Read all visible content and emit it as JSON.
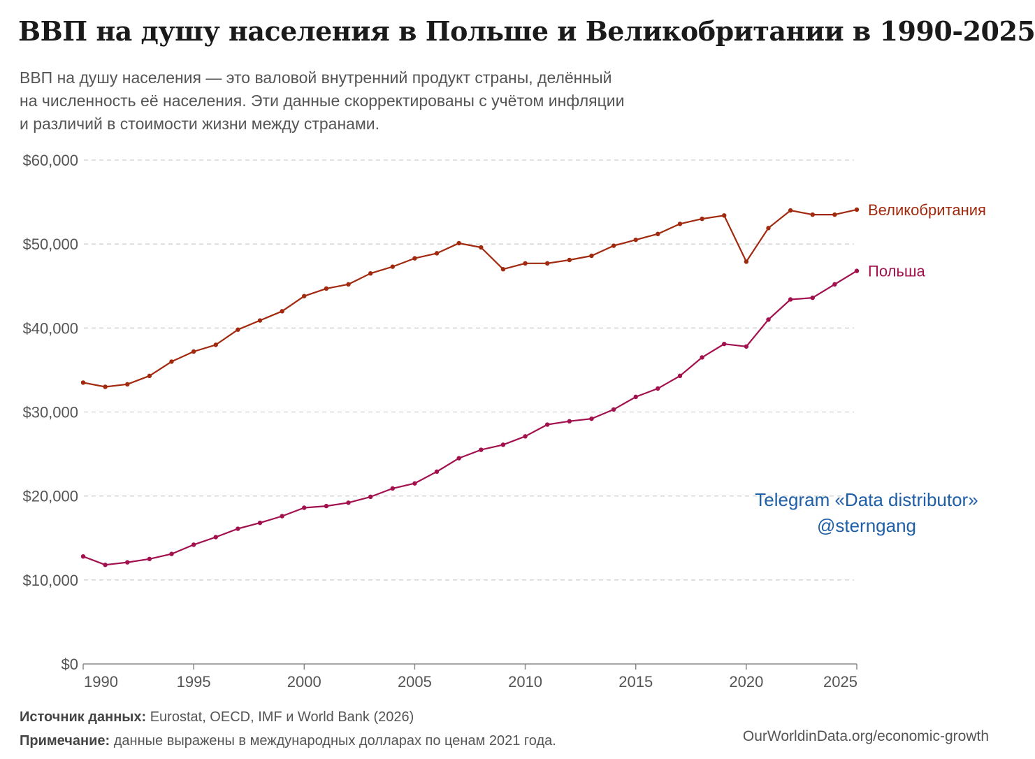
{
  "title": "ВВП на душу населения в Польше и Великобритании в 1990-2025",
  "subtitle": [
    "ВВП на душу населения — это валовой внутренний продукт страны, делённый",
    "на численность её населения. Эти данные скорректированы с учётом инфляции",
    "и различий в стоимости жизни между странами."
  ],
  "watermark": {
    "line1": "Telegram «Data distributor»",
    "line2": "@sterngang"
  },
  "footer": {
    "source_label": "Источник данных:",
    "source_text": " Eurostat, OECD, IMF и World Bank (2026)",
    "note_label": "Примечание:",
    "note_text": " данные выражены в международных долларах по ценам 2021 года.",
    "url": "OurWorldinData.org/economic-growth"
  },
  "chart_data": {
    "type": "line",
    "xlabel": "",
    "ylabel": "",
    "xlim": [
      1990,
      2025
    ],
    "ylim": [
      0,
      60000
    ],
    "yticks": [
      0,
      10000,
      20000,
      30000,
      40000,
      50000,
      60000
    ],
    "ytick_labels": [
      "$0",
      "$10,000",
      "$20,000",
      "$30,000",
      "$40,000",
      "$50,000",
      "$60,000"
    ],
    "xticks": [
      1990,
      1995,
      2000,
      2005,
      2010,
      2015,
      2020,
      2025
    ],
    "xtick_labels": [
      "1990",
      "1995",
      "2000",
      "2005",
      "2010",
      "2015",
      "2020",
      "2025"
    ],
    "grid": "horizontal-dashed",
    "legend": "inline-right",
    "x": [
      1990,
      1991,
      1992,
      1993,
      1994,
      1995,
      1996,
      1997,
      1998,
      1999,
      2000,
      2001,
      2002,
      2003,
      2004,
      2005,
      2006,
      2007,
      2008,
      2009,
      2010,
      2011,
      2012,
      2013,
      2014,
      2015,
      2016,
      2017,
      2018,
      2019,
      2020,
      2021,
      2022,
      2023,
      2024,
      2025
    ],
    "series": [
      {
        "name": "Великобритания",
        "color": "#a1290e",
        "values": [
          33500,
          33000,
          33300,
          34300,
          36000,
          37200,
          38000,
          39800,
          40900,
          42000,
          43800,
          44700,
          45200,
          46500,
          47300,
          48300,
          48900,
          50100,
          49600,
          47000,
          47700,
          47700,
          48100,
          48600,
          49800,
          50500,
          51200,
          52400,
          53000,
          53400,
          47900,
          51900,
          54000,
          53500,
          53500,
          54100
        ]
      },
      {
        "name": "Польша",
        "color": "#a2114e",
        "values": [
          12800,
          11800,
          12100,
          12500,
          13100,
          14200,
          15100,
          16100,
          16800,
          17600,
          18600,
          18800,
          19200,
          19900,
          20900,
          21500,
          22900,
          24500,
          25500,
          26100,
          27100,
          28500,
          28900,
          29200,
          30300,
          31800,
          32800,
          34300,
          36500,
          38100,
          37800,
          41000,
          43400,
          43600,
          45200,
          46800
        ]
      }
    ]
  }
}
